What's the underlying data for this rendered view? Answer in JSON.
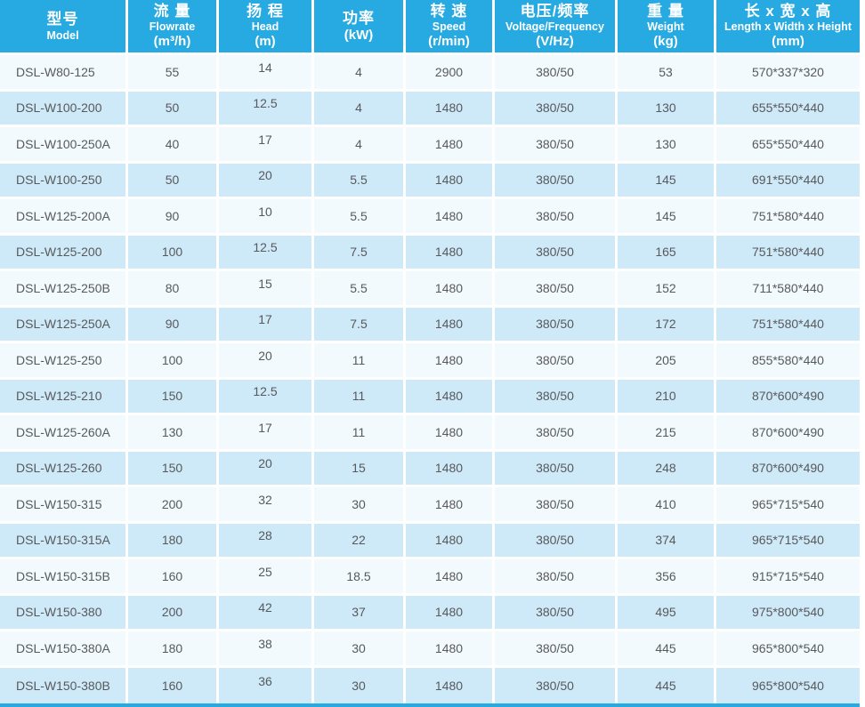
{
  "colors": {
    "header_bg": "#27a9e1",
    "header_text": "#ffffff",
    "row_odd_bg": "#f2fafd",
    "row_even_bg": "#cee9f8",
    "cell_text": "#58595b",
    "separator": "#ffffff",
    "bottom_rule": "#27a9e1"
  },
  "table": {
    "columns": [
      {
        "id": "model",
        "zh": "型号",
        "en": "Model",
        "unit": ""
      },
      {
        "id": "flowrate",
        "zh": "流 量",
        "en": "Flowrate",
        "unit": "(m³/h)"
      },
      {
        "id": "head",
        "zh": "扬 程",
        "en": "Head",
        "unit": "(m)"
      },
      {
        "id": "power",
        "zh": "功率",
        "en": "",
        "unit": "(kW)"
      },
      {
        "id": "speed",
        "zh": "转 速",
        "en": "Speed",
        "unit": "(r/min)"
      },
      {
        "id": "voltage",
        "zh": "电压/频率",
        "en": "Voltage/Frequency",
        "unit": "(V/Hz)"
      },
      {
        "id": "weight",
        "zh": "重 量",
        "en": "Weight",
        "unit": "(kg)"
      },
      {
        "id": "dimensions",
        "zh": "长 x 宽 x 高",
        "en": "Length x Width x Height",
        "unit": "(mm)"
      }
    ],
    "rows": [
      [
        "DSL-W80-125",
        "55",
        "14",
        "4",
        "2900",
        "380/50",
        "53",
        "570*337*320"
      ],
      [
        "DSL-W100-200",
        "50",
        "12.5",
        "4",
        "1480",
        "380/50",
        "130",
        "655*550*440"
      ],
      [
        "DSL-W100-250A",
        "40",
        "17",
        "4",
        "1480",
        "380/50",
        "130",
        "655*550*440"
      ],
      [
        "DSL-W100-250",
        "50",
        "20",
        "5.5",
        "1480",
        "380/50",
        "145",
        "691*550*440"
      ],
      [
        "DSL-W125-200A",
        "90",
        "10",
        "5.5",
        "1480",
        "380/50",
        "145",
        "751*580*440"
      ],
      [
        "DSL-W125-200",
        "100",
        "12.5",
        "7.5",
        "1480",
        "380/50",
        "165",
        "751*580*440"
      ],
      [
        "DSL-W125-250B",
        "80",
        "15",
        "5.5",
        "1480",
        "380/50",
        "152",
        "711*580*440"
      ],
      [
        "DSL-W125-250A",
        "90",
        "17",
        "7.5",
        "1480",
        "380/50",
        "172",
        "751*580*440"
      ],
      [
        "DSL-W125-250",
        "100",
        "20",
        "11",
        "1480",
        "380/50",
        "205",
        "855*580*440"
      ],
      [
        "DSL-W125-210",
        "150",
        "12.5",
        "11",
        "1480",
        "380/50",
        "210",
        "870*600*490"
      ],
      [
        "DSL-W125-260A",
        "130",
        "17",
        "11",
        "1480",
        "380/50",
        "215",
        "870*600*490"
      ],
      [
        "DSL-W125-260",
        "150",
        "20",
        "15",
        "1480",
        "380/50",
        "248",
        "870*600*490"
      ],
      [
        "DSL-W150-315",
        "200",
        "32",
        "30",
        "1480",
        "380/50",
        "410",
        "965*715*540"
      ],
      [
        "DSL-W150-315A",
        "180",
        "28",
        "22",
        "1480",
        "380/50",
        "374",
        "965*715*540"
      ],
      [
        "DSL-W150-315B",
        "160",
        "25",
        "18.5",
        "1480",
        "380/50",
        "356",
        "915*715*540"
      ],
      [
        "DSL-W150-380",
        "200",
        "42",
        "37",
        "1480",
        "380/50",
        "495",
        "975*800*540"
      ],
      [
        "DSL-W150-380A",
        "180",
        "38",
        "30",
        "1480",
        "380/50",
        "445",
        "965*800*540"
      ],
      [
        "DSL-W150-380B",
        "160",
        "36",
        "30",
        "1480",
        "380/50",
        "445",
        "965*800*540"
      ]
    ]
  }
}
